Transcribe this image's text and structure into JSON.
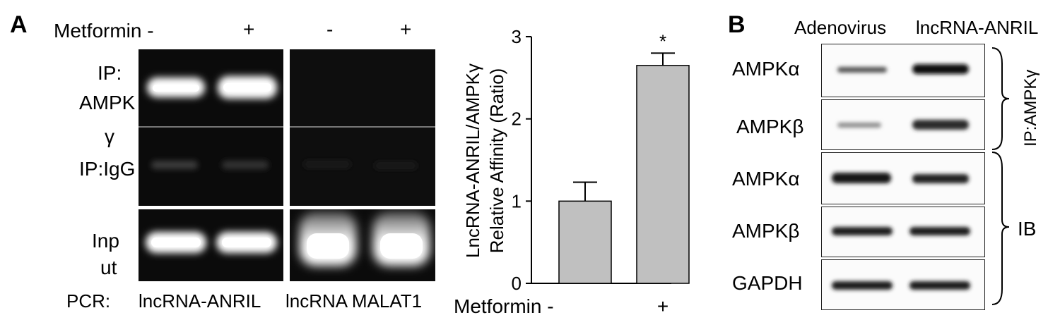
{
  "panel_a": {
    "letter": "A",
    "metformin_label": "Metformin -",
    "signs": [
      "+",
      "-",
      "+"
    ],
    "row_labels": {
      "ip_ampk_line1": "IP:",
      "ip_ampk_line2": "AMPK",
      "ip_ampk_line3": "γ",
      "ip_igg": "IP:IgG",
      "input_line1": "Inp",
      "input_line2": "ut"
    },
    "pcr_label": "PCR:",
    "pcr_targets": [
      "lncRNA-ANRIL",
      "lncRNA MALAT1"
    ]
  },
  "chart_data": {
    "type": "bar",
    "categories": [
      "-",
      "+"
    ],
    "values": [
      1.0,
      2.65
    ],
    "errors": [
      0.23,
      0.15
    ],
    "significance": [
      "",
      "*"
    ],
    "ylabel_line1": "LncRNA-ANRIL/AMPKγ",
    "ylabel_line2": "Relative Affinity (Ratio)",
    "xlabel_prefix": "Metformin",
    "ylim": [
      0,
      3
    ],
    "yticks": [
      "0",
      "1",
      "2",
      "3"
    ],
    "bar_color": "#c0c0c0"
  },
  "panel_b": {
    "letter": "B",
    "columns": [
      "Adenovirus",
      "lncRNA-ANRIL"
    ],
    "rows": [
      "AMPKα",
      "AMPKβ",
      "AMPKα",
      "AMPKβ",
      "GAPDH"
    ],
    "group_ip": "IP:AMPKγ",
    "group_ib": "IB"
  }
}
